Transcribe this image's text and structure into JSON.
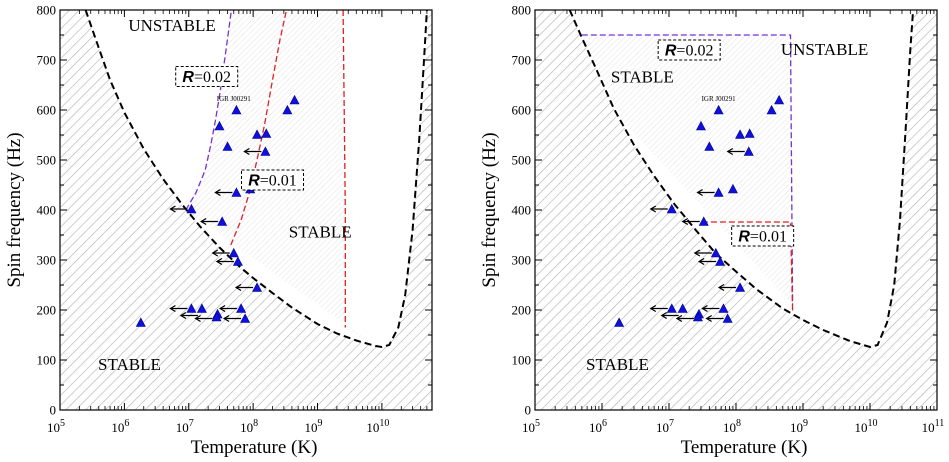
{
  "chart_data": [
    {
      "type": "scatter",
      "panel": "left",
      "xlabel": "Temperature (K)",
      "ylabel": "Spin frequency (Hz)",
      "xscale": "log",
      "xlim": [
        100000,
        60000000000
      ],
      "ylim": [
        0,
        800
      ],
      "x_ticks": [
        {
          "v": 100000,
          "base": "10",
          "exp": "5"
        },
        {
          "v": 1000000,
          "base": "10",
          "exp": "6"
        },
        {
          "v": 10000000,
          "base": "10",
          "exp": "7"
        },
        {
          "v": 100000000,
          "base": "10",
          "exp": "8"
        },
        {
          "v": 1000000000,
          "base": "10",
          "exp": "9"
        },
        {
          "v": 10000000000,
          "base": "10",
          "exp": "10"
        }
      ],
      "y_ticks": [
        "0",
        "100",
        "200",
        "300",
        "400",
        "500",
        "600",
        "700",
        "800"
      ],
      "regions": [
        {
          "text": "UNSTABLE",
          "x": 5500000,
          "y": 758
        },
        {
          "text": "STABLE",
          "x": 1100000000,
          "y": 345
        },
        {
          "text": "STABLE",
          "x": 1200000,
          "y": 80
        }
      ],
      "source_annotation": {
        "text": "IGR J00291",
        "x": 50000000,
        "y": 618
      },
      "boxes": [
        {
          "symbol": "R",
          "rest": "=0.02",
          "x": 19000000,
          "y": 667,
          "color": "#7733cc"
        },
        {
          "symbol": "R",
          "rest": "=0.01",
          "x": 200000000,
          "y": 460,
          "color": "#dd2222"
        }
      ],
      "instability_curve": {
        "points": [
          [
            250000,
            800
          ],
          [
            400000,
            724
          ],
          [
            600000,
            660
          ],
          [
            1000000,
            595
          ],
          [
            2000000,
            522
          ],
          [
            4000000,
            462
          ],
          [
            8000000,
            410
          ],
          [
            15000000,
            367
          ],
          [
            30000000,
            325
          ],
          [
            60000000,
            288
          ],
          [
            100000000,
            264
          ],
          [
            200000000,
            234
          ],
          [
            400000000,
            205
          ],
          [
            1000000000,
            172
          ],
          [
            2000000000,
            153
          ],
          [
            4000000000,
            139
          ],
          [
            8000000000,
            128
          ],
          [
            10000000000,
            126
          ],
          [
            13000000000,
            130
          ],
          [
            18000000000,
            165
          ],
          [
            23000000000,
            230
          ],
          [
            30000000000,
            360
          ],
          [
            38000000000,
            540
          ],
          [
            45000000000,
            700
          ],
          [
            50000000000,
            800
          ]
        ]
      },
      "r_curves": [
        {
          "name": "R=0.02",
          "color": "#7733cc",
          "points": [
            [
              9000000,
              400
            ],
            [
              13000000,
              435
            ],
            [
              18000000,
              480
            ],
            [
              22000000,
              530
            ],
            [
              26000000,
              580
            ],
            [
              31000000,
              640
            ],
            [
              37000000,
              710
            ],
            [
              46000000,
              800
            ]
          ]
        },
        {
          "name": "R=0.01",
          "color": "#dd2222",
          "points": [
            [
              45000000,
              330
            ],
            [
              65000000,
              380
            ],
            [
              90000000,
              440
            ],
            [
              115000000,
              500
            ],
            [
              150000000,
              570
            ],
            [
              200000000,
              660
            ],
            [
              260000000,
              740
            ],
            [
              330000000,
              800
            ]
          ]
        },
        {
          "name": "vertical-dashed",
          "color": "#dd2222",
          "points": [
            [
              2500000000,
              800
            ],
            [
              2600000000,
              600
            ],
            [
              2700000000,
              400
            ],
            [
              2700000000,
              165
            ]
          ]
        }
      ],
      "sources": [
        {
          "x": 1800000,
          "y": 175
        },
        {
          "x": 11000000,
          "y": 203
        },
        {
          "x": 16000000,
          "y": 203
        },
        {
          "x": 28000000,
          "y": 192
        },
        {
          "x": 27000000,
          "y": 186
        },
        {
          "x": 65000000,
          "y": 203
        },
        {
          "x": 75000000,
          "y": 183
        },
        {
          "x": 115000000,
          "y": 245
        },
        {
          "x": 58000000,
          "y": 297
        },
        {
          "x": 50000000,
          "y": 314
        },
        {
          "x": 33000000,
          "y": 377
        },
        {
          "x": 11000000,
          "y": 402
        },
        {
          "x": 55000000,
          "y": 435
        },
        {
          "x": 90000000,
          "y": 442
        },
        {
          "x": 40000000,
          "y": 527
        },
        {
          "x": 155000000,
          "y": 517
        },
        {
          "x": 115000000,
          "y": 551
        },
        {
          "x": 160000000,
          "y": 553
        },
        {
          "x": 30000000,
          "y": 568
        },
        {
          "x": 55000000,
          "y": 600
        },
        {
          "x": 340000000,
          "y": 600
        },
        {
          "x": 440000000,
          "y": 620
        }
      ],
      "arrows": [
        {
          "x": 11000000,
          "y": 203
        },
        {
          "x": 16000000,
          "y": 189
        },
        {
          "x": 27000000,
          "y": 183
        },
        {
          "x": 65000000,
          "y": 203
        },
        {
          "x": 75000000,
          "y": 183
        },
        {
          "x": 115000000,
          "y": 245
        },
        {
          "x": 58000000,
          "y": 297
        },
        {
          "x": 50000000,
          "y": 314
        },
        {
          "x": 33000000,
          "y": 377
        },
        {
          "x": 11000000,
          "y": 402
        },
        {
          "x": 55000000,
          "y": 435
        },
        {
          "x": 155000000,
          "y": 517
        }
      ]
    },
    {
      "type": "scatter",
      "panel": "right",
      "xlabel": "Temperature (K)",
      "ylabel": "Spin frequency (Hz)",
      "xscale": "log",
      "xlim": [
        100000,
        100000000000
      ],
      "ylim": [
        0,
        800
      ],
      "x_ticks": [
        {
          "v": 100000,
          "base": "10",
          "exp": "5"
        },
        {
          "v": 1000000,
          "base": "10",
          "exp": "6"
        },
        {
          "v": 10000000,
          "base": "10",
          "exp": "7"
        },
        {
          "v": 100000000,
          "base": "10",
          "exp": "8"
        },
        {
          "v": 1000000000,
          "base": "10",
          "exp": "9"
        },
        {
          "v": 10000000000,
          "base": "10",
          "exp": "10"
        },
        {
          "v": 100000000000,
          "base": "10",
          "exp": "11"
        }
      ],
      "y_ticks": [
        "0",
        "100",
        "200",
        "300",
        "400",
        "500",
        "600",
        "700",
        "800"
      ],
      "regions": [
        {
          "text": "UNSTABLE",
          "x": 2100000000,
          "y": 710
        },
        {
          "text": "STABLE",
          "x": 4000000,
          "y": 655
        },
        {
          "text": "STABLE",
          "x": 1700000,
          "y": 80
        }
      ],
      "source_annotation": {
        "text": "IGR J00291",
        "x": 55000000,
        "y": 618
      },
      "boxes": [
        {
          "symbol": "R",
          "rest": "=0.02",
          "x": 20000000,
          "y": 720,
          "color": "#7733cc"
        },
        {
          "symbol": "R",
          "rest": "=0.01",
          "x": 250000000,
          "y": 348,
          "color": "#dd2222"
        }
      ],
      "instability_curve": {
        "points": [
          [
            330000,
            800
          ],
          [
            500000,
            745
          ],
          [
            800000,
            685
          ],
          [
            1500000,
            603
          ],
          [
            3000000,
            530
          ],
          [
            6000000,
            468
          ],
          [
            12000000,
            412
          ],
          [
            25000000,
            360
          ],
          [
            50000000,
            313
          ],
          [
            100000000,
            277
          ],
          [
            200000000,
            242
          ],
          [
            500000000,
            203
          ],
          [
            1000000000,
            180
          ],
          [
            2000000000,
            160
          ],
          [
            5000000000,
            138
          ],
          [
            10000000000,
            126
          ],
          [
            13000000000,
            130
          ],
          [
            18000000000,
            175
          ],
          [
            23000000000,
            250
          ],
          [
            28000000000,
            380
          ],
          [
            34000000000,
            560
          ],
          [
            40000000000,
            720
          ],
          [
            44000000000,
            800
          ]
        ]
      },
      "r_curves": [
        {
          "name": "R=0.02",
          "color": "#7733cc",
          "points": [
            [
              500000,
              750
            ],
            [
              650000000,
              750
            ],
            [
              700000000,
              210
            ]
          ]
        },
        {
          "name": "R=0.01",
          "color": "#dd2222",
          "points": [
            [
              31000000,
              376
            ],
            [
              650000000,
              376
            ],
            [
              700000000,
              198
            ]
          ]
        }
      ],
      "sources": [
        {
          "x": 1800000,
          "y": 175
        },
        {
          "x": 11000000,
          "y": 203
        },
        {
          "x": 16000000,
          "y": 203
        },
        {
          "x": 28000000,
          "y": 192
        },
        {
          "x": 27000000,
          "y": 186
        },
        {
          "x": 65000000,
          "y": 203
        },
        {
          "x": 75000000,
          "y": 183
        },
        {
          "x": 115000000,
          "y": 245
        },
        {
          "x": 58000000,
          "y": 297
        },
        {
          "x": 50000000,
          "y": 314
        },
        {
          "x": 33000000,
          "y": 377
        },
        {
          "x": 11000000,
          "y": 402
        },
        {
          "x": 55000000,
          "y": 435
        },
        {
          "x": 90000000,
          "y": 442
        },
        {
          "x": 40000000,
          "y": 527
        },
        {
          "x": 155000000,
          "y": 517
        },
        {
          "x": 115000000,
          "y": 551
        },
        {
          "x": 160000000,
          "y": 553
        },
        {
          "x": 30000000,
          "y": 568
        },
        {
          "x": 55000000,
          "y": 600
        },
        {
          "x": 340000000,
          "y": 600
        },
        {
          "x": 440000000,
          "y": 620
        }
      ],
      "arrows": [
        {
          "x": 11000000,
          "y": 203
        },
        {
          "x": 16000000,
          "y": 189
        },
        {
          "x": 27000000,
          "y": 183
        },
        {
          "x": 65000000,
          "y": 203
        },
        {
          "x": 75000000,
          "y": 183
        },
        {
          "x": 115000000,
          "y": 245
        },
        {
          "x": 58000000,
          "y": 297
        },
        {
          "x": 50000000,
          "y": 314
        },
        {
          "x": 33000000,
          "y": 377
        },
        {
          "x": 11000000,
          "y": 402
        },
        {
          "x": 55000000,
          "y": 435
        },
        {
          "x": 155000000,
          "y": 517
        }
      ]
    }
  ]
}
